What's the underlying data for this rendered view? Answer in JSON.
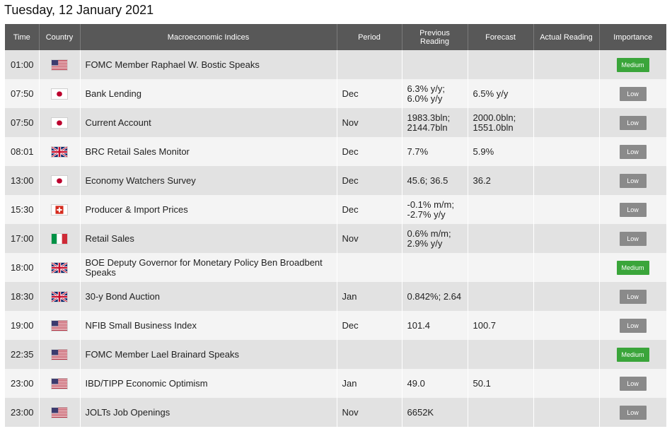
{
  "page_title": "Tuesday, 12 January 2021",
  "columns": [
    "Time",
    "Country",
    "Macroeconomic Indices",
    "Period",
    "Previous Reading",
    "Forecast",
    "Actual Reading",
    "Importance"
  ],
  "rows": [
    {
      "time": "01:00",
      "country": "us-flag-icon",
      "index": "FOMC Member Raphael W. Bostic Speaks",
      "period": "",
      "previous": "",
      "forecast": "",
      "actual": "",
      "importance": "Medium"
    },
    {
      "time": "07:50",
      "country": "japan-flag-icon",
      "index": "Bank Lending",
      "period": "Dec",
      "previous": "6.3% y/y; 6.0% y/y",
      "forecast": "6.5% y/y",
      "actual": "",
      "importance": "Low"
    },
    {
      "time": "07:50",
      "country": "japan-flag-icon",
      "index": "Current Account",
      "period": "Nov",
      "previous": "1983.3bln; 2144.7bln",
      "forecast": "2000.0bln; 1551.0bln",
      "actual": "",
      "importance": "Low"
    },
    {
      "time": "08:01",
      "country": "uk-flag-icon",
      "index": "BRC Retail Sales Monitor",
      "period": "Dec",
      "previous": "7.7%",
      "forecast": "5.9%",
      "actual": "",
      "importance": "Low"
    },
    {
      "time": "13:00",
      "country": "japan-flag-icon",
      "index": "Economy Watchers Survey",
      "period": "Dec",
      "previous": "45.6; 36.5",
      "forecast": "36.2",
      "actual": "",
      "importance": "Low"
    },
    {
      "time": "15:30",
      "country": "swiss-flag-icon",
      "index": "Producer & Import Prices",
      "period": "Dec",
      "previous": "-0.1% m/m; -2.7% y/y",
      "forecast": "",
      "actual": "",
      "importance": "Low"
    },
    {
      "time": "17:00",
      "country": "italy-flag-icon",
      "index": "Retail Sales",
      "period": "Nov",
      "previous": "0.6% m/m; 2.9% y/y",
      "forecast": "",
      "actual": "",
      "importance": "Low"
    },
    {
      "time": "18:00",
      "country": "uk-flag-icon",
      "index": "BOE Deputy Governor for Monetary Policy Ben Broadbent Speaks",
      "period": "",
      "previous": "",
      "forecast": "",
      "actual": "",
      "importance": "Medium"
    },
    {
      "time": "18:30",
      "country": "uk-flag-icon",
      "index": "30-y Bond Auction",
      "period": "Jan",
      "previous": "0.842%; 2.64",
      "forecast": "",
      "actual": "",
      "importance": "Low"
    },
    {
      "time": "19:00",
      "country": "us-flag-icon",
      "index": "NFIB Small Business Index",
      "period": "Dec",
      "previous": "101.4",
      "forecast": "100.7",
      "actual": "",
      "importance": "Low"
    },
    {
      "time": "22:35",
      "country": "us-flag-icon",
      "index": "FOMC Member Lael Brainard Speaks",
      "period": "",
      "previous": "",
      "forecast": "",
      "actual": "",
      "importance": "Medium"
    },
    {
      "time": "23:00",
      "country": "us-flag-icon",
      "index": "IBD/TIPP Economic Optimism",
      "period": "Jan",
      "previous": "49.0",
      "forecast": "50.1",
      "actual": "",
      "importance": "Low"
    },
    {
      "time": "23:00",
      "country": "us-flag-icon",
      "index": "JOLTs Job Openings",
      "period": "Nov",
      "previous": "6652K",
      "forecast": "",
      "actual": "",
      "importance": "Low"
    }
  ],
  "colors": {
    "header_bg": "#585858",
    "row_even": "#e2e2e2",
    "row_odd": "#f4f4f4",
    "badge_low": "#8a8a8a",
    "badge_medium": "#3aa53a"
  }
}
